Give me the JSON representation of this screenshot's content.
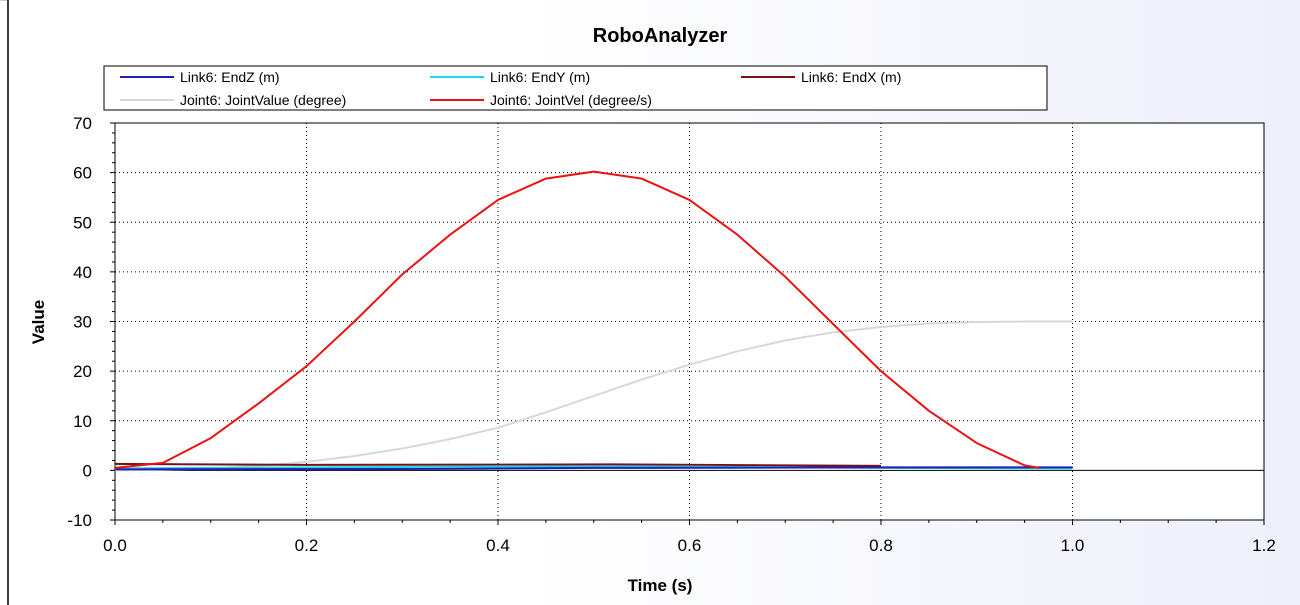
{
  "chart_data": {
    "type": "line",
    "title": "RoboAnalyzer",
    "xlabel": "Time (s)",
    "ylabel": "Value",
    "xlim": [
      0.0,
      1.2
    ],
    "ylim": [
      -10,
      70
    ],
    "x_ticks": [
      "0.0",
      "0.2",
      "0.4",
      "0.6",
      "0.8",
      "1.0",
      "1.2"
    ],
    "y_ticks": [
      "-10",
      "0",
      "10",
      "20",
      "30",
      "40",
      "50",
      "60",
      "70"
    ],
    "x_tick_values": [
      0.0,
      0.2,
      0.4,
      0.6,
      0.8,
      1.0,
      1.2
    ],
    "y_tick_values": [
      -10,
      0,
      10,
      20,
      30,
      40,
      50,
      60,
      70
    ],
    "grid": true,
    "legend_position": "top",
    "series": [
      {
        "name": "Link6: EndZ (m)",
        "color": "#1f1fb4",
        "x": [
          0.0,
          0.33,
          0.5,
          0.8,
          1.0
        ],
        "y": [
          0.2,
          0.3,
          0.5,
          0.6,
          0.6
        ]
      },
      {
        "name": "Link6: EndY (m)",
        "color": "#1ad8e8",
        "x": [
          0.0,
          0.2,
          0.4,
          0.55,
          0.8,
          1.0
        ],
        "y": [
          0.4,
          0.6,
          0.8,
          0.8,
          0.5,
          0.4
        ]
      },
      {
        "name": "Link6: EndX (m)",
        "color": "#7a1010",
        "x": [
          0.0,
          0.2,
          0.52,
          0.8
        ],
        "y": [
          1.3,
          1.1,
          1.2,
          0.9
        ]
      },
      {
        "name": "Joint6: JointValue (degree)",
        "color": "#d8d8d8",
        "x": [
          0.0,
          0.05,
          0.1,
          0.15,
          0.2,
          0.25,
          0.3,
          0.35,
          0.4,
          0.45,
          0.5,
          0.55,
          0.6,
          0.65,
          0.7,
          0.75,
          0.8,
          0.85,
          0.9,
          0.95,
          1.0
        ],
        "y": [
          0.0,
          0.1,
          0.4,
          0.9,
          1.7,
          2.9,
          4.4,
          6.3,
          8.6,
          11.7,
          15.0,
          18.3,
          21.3,
          24.0,
          26.2,
          27.8,
          28.9,
          29.6,
          29.9,
          30.0,
          30.0
        ]
      },
      {
        "name": "Joint6: JointVel (degree/s)",
        "color": "#ee1111",
        "x": [
          0.0,
          0.05,
          0.1,
          0.15,
          0.2,
          0.25,
          0.3,
          0.35,
          0.4,
          0.45,
          0.5,
          0.55,
          0.6,
          0.65,
          0.7,
          0.75,
          0.8,
          0.85,
          0.9,
          0.95,
          0.965
        ],
        "y": [
          0.5,
          1.5,
          6.5,
          13.5,
          21.0,
          30.0,
          39.5,
          47.5,
          54.5,
          58.8,
          60.2,
          58.8,
          54.5,
          47.5,
          39.0,
          29.5,
          20.0,
          12.0,
          5.5,
          1.0,
          0.5
        ]
      }
    ]
  }
}
